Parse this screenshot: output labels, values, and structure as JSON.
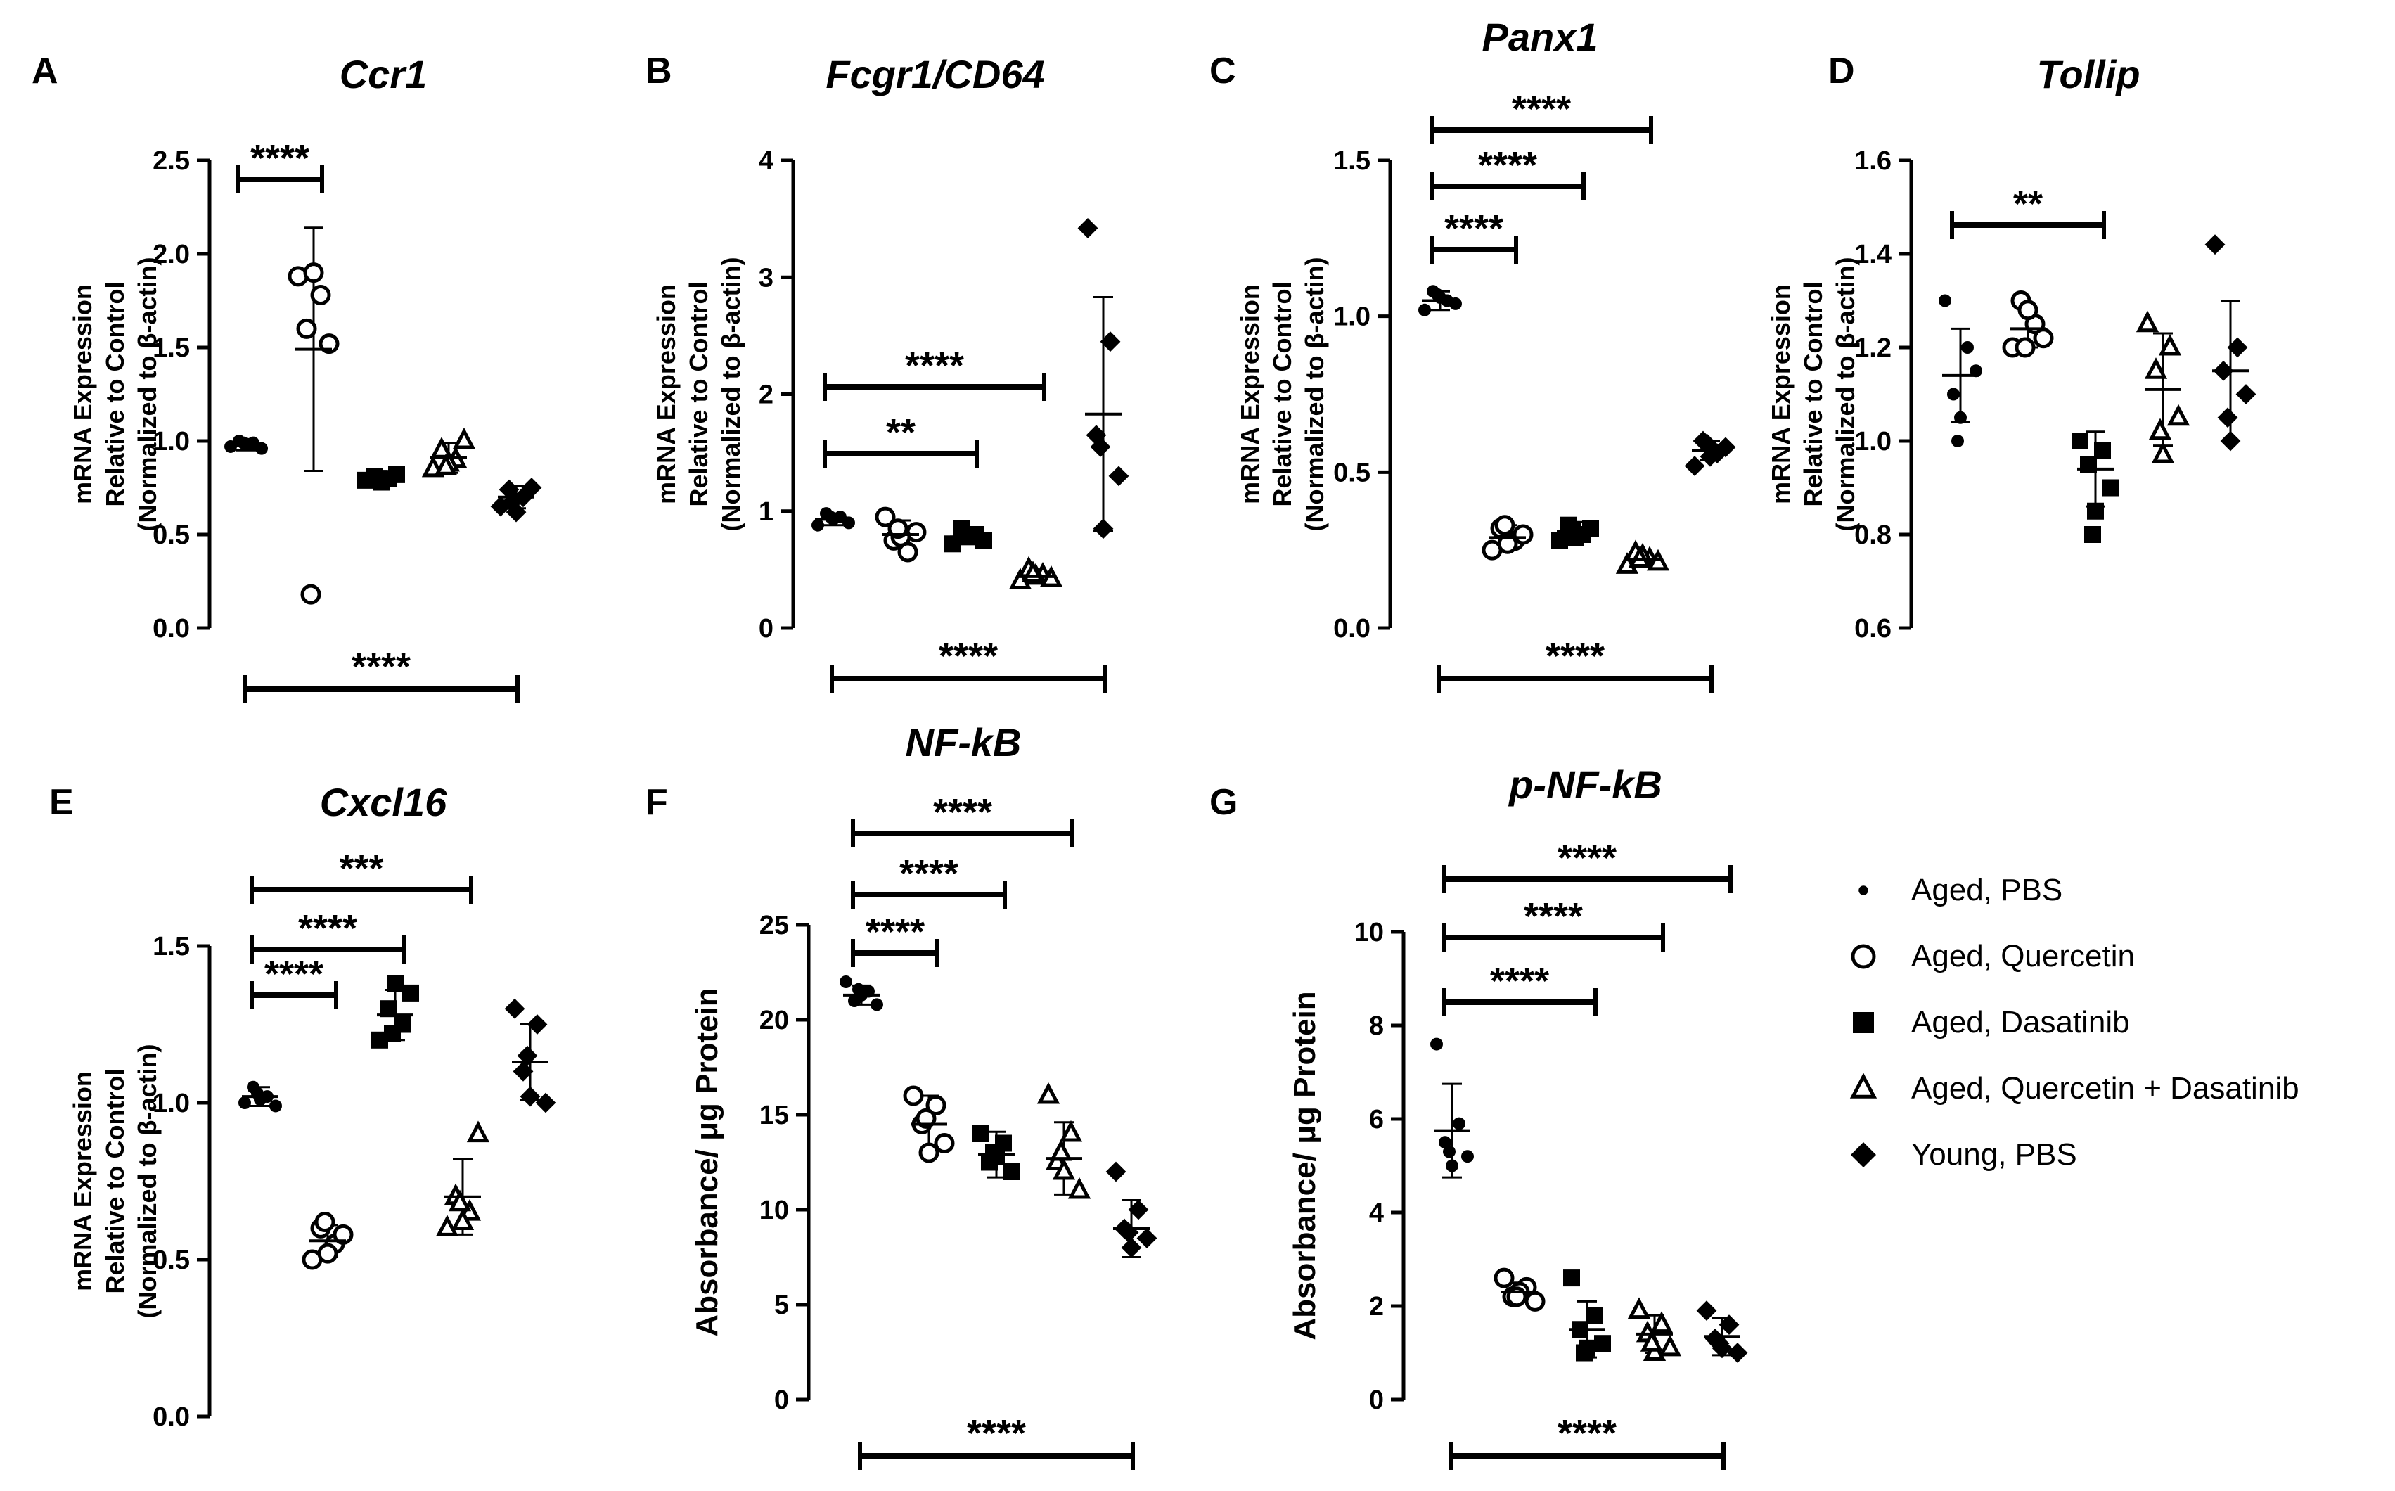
{
  "legend": [
    {
      "label": "Aged, PBS",
      "marker": "circle-filled"
    },
    {
      "label": "Aged, Quercetin",
      "marker": "circle-open"
    },
    {
      "label": "Aged, Dasatinib",
      "marker": "square-filled"
    },
    {
      "label": "Aged, Quercetin + Dasatinib",
      "marker": "triangle-open"
    },
    {
      "label": "Young, PBS",
      "marker": "diamond-filled"
    }
  ],
  "chart_data": [
    {
      "panel": "A",
      "title": "Ccr1",
      "type": "scatter",
      "ylabel": [
        "mRNA Expression",
        "Relative to Control",
        "(Normalized to β-actin)"
      ],
      "ylim": [
        0,
        2.5
      ],
      "yticks": [
        "0.0",
        "0.5",
        "1.0",
        "1.5",
        "2.0",
        "2.5"
      ],
      "ytick_values": [
        0,
        0.5,
        1.0,
        1.5,
        2.0,
        2.5
      ],
      "series": [
        {
          "name": "Aged, PBS",
          "marker": "circle-filled",
          "mean": 0.98,
          "sd": 0.03,
          "values": [
            0.97,
            0.99,
            1.0,
            0.96,
            0.98,
            0.99
          ]
        },
        {
          "name": "Aged, Quercetin",
          "marker": "circle-open",
          "mean": 1.49,
          "sd": 0.65,
          "values": [
            1.88,
            1.78,
            1.6,
            1.52,
            1.9,
            0.18
          ]
        },
        {
          "name": "Aged, Dasatinib",
          "marker": "square-filled",
          "mean": 0.8,
          "sd": 0.02,
          "values": [
            0.79,
            0.8,
            0.81,
            0.82,
            0.78,
            0.8
          ]
        },
        {
          "name": "Aged, Quercetin + Dasatinib",
          "marker": "triangle-open",
          "mean": 0.91,
          "sd": 0.08,
          "values": [
            0.85,
            0.9,
            0.95,
            1.0,
            0.88,
            0.86
          ]
        },
        {
          "name": "Young, PBS",
          "marker": "diamond-filled",
          "mean": 0.7,
          "sd": 0.06,
          "values": [
            0.65,
            0.7,
            0.74,
            0.75,
            0.62,
            0.68
          ]
        }
      ],
      "brackets_top": [
        {
          "from": 0,
          "to": 1,
          "label": "****"
        }
      ],
      "bracket_bottom": {
        "from": 0,
        "to": 4,
        "label": "****"
      }
    },
    {
      "panel": "B",
      "title": "Fcgr1/CD64",
      "type": "scatter",
      "ylabel": [
        "mRNA Expression",
        "Relative to Control",
        "(Normalized to β-actin)"
      ],
      "ylim": [
        0,
        4
      ],
      "yticks": [
        "0",
        "1",
        "2",
        "3",
        "4"
      ],
      "ytick_values": [
        0,
        1,
        2,
        3,
        4
      ],
      "series": [
        {
          "name": "Aged, PBS",
          "marker": "circle-filled",
          "mean": 0.93,
          "sd": 0.05,
          "values": [
            0.88,
            0.95,
            0.98,
            0.9,
            0.93,
            0.95
          ]
        },
        {
          "name": "Aged, Quercetin",
          "marker": "circle-open",
          "mean": 0.8,
          "sd": 0.12,
          "values": [
            0.95,
            0.65,
            0.75,
            0.82,
            0.78,
            0.85
          ]
        },
        {
          "name": "Aged, Dasatinib",
          "marker": "square-filled",
          "mean": 0.78,
          "sd": 0.05,
          "values": [
            0.72,
            0.8,
            0.85,
            0.75,
            0.78,
            0.8
          ]
        },
        {
          "name": "Aged, Quercetin + Dasatinib",
          "marker": "triangle-open",
          "mean": 0.44,
          "sd": 0.05,
          "values": [
            0.4,
            0.45,
            0.5,
            0.42,
            0.44,
            0.46
          ]
        },
        {
          "name": "Young, PBS",
          "marker": "diamond-filled",
          "mean": 1.83,
          "sd": 1.0,
          "values": [
            3.42,
            2.45,
            1.65,
            1.3,
            0.85,
            1.55
          ]
        }
      ],
      "brackets_top": [
        {
          "from": 0,
          "to": 3,
          "label": "****"
        },
        {
          "from": 0,
          "to": 2,
          "label": "**"
        }
      ],
      "bracket_bottom": {
        "from": 0,
        "to": 4,
        "label": "****"
      }
    },
    {
      "panel": "C",
      "title": "Panx1",
      "type": "scatter",
      "ylabel": [
        "mRNA Expression",
        "Relative to Control",
        "(Normalized to β-actin)"
      ],
      "ylim": [
        0,
        1.5
      ],
      "yticks": [
        "0.0",
        "0.5",
        "1.0",
        "1.5"
      ],
      "ytick_values": [
        0,
        0.5,
        1.0,
        1.5
      ],
      "series": [
        {
          "name": "Aged, PBS",
          "marker": "circle-filled",
          "mean": 1.05,
          "sd": 0.03,
          "values": [
            1.02,
            1.05,
            1.08,
            1.04,
            1.06,
            1.07
          ]
        },
        {
          "name": "Aged, Quercetin",
          "marker": "circle-open",
          "mean": 0.29,
          "sd": 0.04,
          "values": [
            0.25,
            0.28,
            0.32,
            0.3,
            0.27,
            0.33
          ]
        },
        {
          "name": "Aged, Dasatinib",
          "marker": "square-filled",
          "mean": 0.31,
          "sd": 0.03,
          "values": [
            0.28,
            0.3,
            0.33,
            0.32,
            0.29,
            0.31
          ]
        },
        {
          "name": "Aged, Quercetin + Dasatinib",
          "marker": "triangle-open",
          "mean": 0.22,
          "sd": 0.02,
          "values": [
            0.2,
            0.22,
            0.24,
            0.21,
            0.23,
            0.22
          ]
        },
        {
          "name": "Young, PBS",
          "marker": "diamond-filled",
          "mean": 0.57,
          "sd": 0.03,
          "values": [
            0.52,
            0.56,
            0.6,
            0.58,
            0.55,
            0.59
          ]
        }
      ],
      "brackets_top": [
        {
          "from": 0,
          "to": 3,
          "label": "****"
        },
        {
          "from": 0,
          "to": 2,
          "label": "****"
        },
        {
          "from": 0,
          "to": 1,
          "label": "****"
        }
      ],
      "bracket_bottom": {
        "from": 0,
        "to": 4,
        "label": "****"
      }
    },
    {
      "panel": "D",
      "title": "Tollip",
      "type": "scatter",
      "ylabel": [
        "mRNA Expression",
        "Relative to Control",
        "(Normalized to β-actin)"
      ],
      "ylim": [
        0.6,
        1.6
      ],
      "yticks": [
        "0.6",
        "0.8",
        "1.0",
        "1.2",
        "1.4",
        "1.6"
      ],
      "ytick_values": [
        0.6,
        0.8,
        1.0,
        1.2,
        1.4,
        1.6
      ],
      "series": [
        {
          "name": "Aged, PBS",
          "marker": "circle-filled",
          "mean": 1.14,
          "sd": 0.1,
          "values": [
            1.3,
            1.2,
            1.1,
            1.15,
            1.05,
            1.0
          ]
        },
        {
          "name": "Aged, Quercetin",
          "marker": "circle-open",
          "mean": 1.24,
          "sd": 0.04,
          "values": [
            1.2,
            1.25,
            1.3,
            1.22,
            1.28,
            1.2
          ]
        },
        {
          "name": "Aged, Dasatinib",
          "marker": "square-filled",
          "mean": 0.94,
          "sd": 0.08,
          "values": [
            1.0,
            0.98,
            0.95,
            0.9,
            0.85,
            0.8
          ]
        },
        {
          "name": "Aged, Quercetin + Dasatinib",
          "marker": "triangle-open",
          "mean": 1.11,
          "sd": 0.12,
          "values": [
            1.25,
            1.2,
            1.15,
            1.05,
            0.97,
            1.02
          ]
        },
        {
          "name": "Young, PBS",
          "marker": "diamond-filled",
          "mean": 1.15,
          "sd": 0.15,
          "values": [
            1.42,
            1.2,
            1.15,
            1.1,
            1.0,
            1.05
          ]
        }
      ],
      "brackets_top": [
        {
          "from": 0,
          "to": 2,
          "label": "**"
        }
      ],
      "bracket_bottom": null
    },
    {
      "panel": "E",
      "title": "Cxcl16",
      "type": "scatter",
      "ylabel": [
        "mRNA Expression",
        "Relative to Control",
        "(Normalized to β-actin)"
      ],
      "ylim": [
        0,
        1.5
      ],
      "yticks": [
        "0.0",
        "0.5",
        "1.0",
        "1.5"
      ],
      "ytick_values": [
        0,
        0.5,
        1.0,
        1.5
      ],
      "series": [
        {
          "name": "Aged, PBS",
          "marker": "circle-filled",
          "mean": 1.02,
          "sd": 0.03,
          "values": [
            1.0,
            1.02,
            1.05,
            0.99,
            1.01,
            1.03
          ]
        },
        {
          "name": "Aged, Quercetin",
          "marker": "circle-open",
          "mean": 0.56,
          "sd": 0.05,
          "values": [
            0.5,
            0.55,
            0.6,
            0.58,
            0.52,
            0.62
          ]
        },
        {
          "name": "Aged, Dasatinib",
          "marker": "square-filled",
          "mean": 1.28,
          "sd": 0.08,
          "values": [
            1.2,
            1.25,
            1.3,
            1.35,
            1.38,
            1.22
          ]
        },
        {
          "name": "Aged, Quercetin + Dasatinib",
          "marker": "triangle-open",
          "mean": 0.7,
          "sd": 0.12,
          "values": [
            0.6,
            0.65,
            0.7,
            0.9,
            0.62,
            0.68
          ]
        },
        {
          "name": "Young, PBS",
          "marker": "diamond-filled",
          "mean": 1.13,
          "sd": 0.12,
          "values": [
            1.3,
            1.25,
            1.1,
            1.0,
            1.02,
            1.15
          ]
        }
      ],
      "brackets_top": [
        {
          "from": 0,
          "to": 3,
          "label": "***"
        },
        {
          "from": 0,
          "to": 2,
          "label": "****"
        },
        {
          "from": 0,
          "to": 1,
          "label": "****"
        }
      ],
      "bracket_bottom": null
    },
    {
      "panel": "F",
      "title": "NF-kB",
      "type": "scatter",
      "ylabel": [
        "Absorbance/ μg Protein"
      ],
      "ylim": [
        0,
        25
      ],
      "yticks": [
        "0",
        "5",
        "10",
        "15",
        "20",
        "25"
      ],
      "ytick_values": [
        0,
        5,
        10,
        15,
        20,
        25
      ],
      "series": [
        {
          "name": "Aged, PBS",
          "marker": "circle-filled",
          "mean": 21.3,
          "sd": 0.5,
          "values": [
            22.0,
            21.5,
            21.0,
            20.8,
            21.3,
            21.6
          ]
        },
        {
          "name": "Aged, Quercetin",
          "marker": "circle-open",
          "mean": 14.5,
          "sd": 1.5,
          "values": [
            16.0,
            15.5,
            14.5,
            13.5,
            13.0,
            14.8
          ]
        },
        {
          "name": "Aged, Dasatinib",
          "marker": "square-filled",
          "mean": 12.9,
          "sd": 1.2,
          "values": [
            14.0,
            13.5,
            12.5,
            12.0,
            12.8,
            13.0
          ]
        },
        {
          "name": "Aged, Quercetin + Dasatinib",
          "marker": "triangle-open",
          "mean": 12.7,
          "sd": 1.9,
          "values": [
            16.0,
            14.0,
            12.5,
            11.0,
            12.0,
            13.0
          ]
        },
        {
          "name": "Young, PBS",
          "marker": "diamond-filled",
          "mean": 9.0,
          "sd": 1.5,
          "values": [
            12.0,
            10.0,
            9.0,
            8.5,
            8.0,
            8.8
          ]
        }
      ],
      "brackets_top": [
        {
          "from": 0,
          "to": 3,
          "label": "****"
        },
        {
          "from": 0,
          "to": 2,
          "label": "****"
        },
        {
          "from": 0,
          "to": 1,
          "label": "****"
        }
      ],
      "bracket_bottom": {
        "from": 0,
        "to": 4,
        "label": "****"
      }
    },
    {
      "panel": "G",
      "title": "p-NF-kB",
      "type": "scatter",
      "ylabel": [
        "Absorbance/ μg Protein"
      ],
      "ylim": [
        0,
        10
      ],
      "yticks": [
        "0",
        "2",
        "4",
        "6",
        "8",
        "10"
      ],
      "ytick_values": [
        0,
        2,
        4,
        6,
        8,
        10
      ],
      "series": [
        {
          "name": "Aged, PBS",
          "marker": "circle-filled",
          "mean": 5.75,
          "sd": 1.0,
          "values": [
            7.6,
            5.9,
            5.5,
            5.2,
            5.0,
            5.3
          ]
        },
        {
          "name": "Aged, Quercetin",
          "marker": "circle-open",
          "mean": 2.3,
          "sd": 0.2,
          "values": [
            2.6,
            2.4,
            2.2,
            2.1,
            2.3,
            2.2
          ]
        },
        {
          "name": "Aged, Dasatinib",
          "marker": "square-filled",
          "mean": 1.5,
          "sd": 0.6,
          "values": [
            2.6,
            1.8,
            1.5,
            1.2,
            1.1,
            1.0
          ]
        },
        {
          "name": "Aged, Quercetin + Dasatinib",
          "marker": "triangle-open",
          "mean": 1.4,
          "sd": 0.4,
          "values": [
            1.9,
            1.6,
            1.4,
            1.1,
            1.0,
            1.2
          ]
        },
        {
          "name": "Young, PBS",
          "marker": "diamond-filled",
          "mean": 1.35,
          "sd": 0.4,
          "values": [
            1.9,
            1.6,
            1.3,
            1.0,
            1.1,
            1.2
          ]
        }
      ],
      "brackets_top": [
        {
          "from": 0,
          "to": 4,
          "label": "****"
        },
        {
          "from": 0,
          "to": 3,
          "label": "****"
        },
        {
          "from": 0,
          "to": 2,
          "label": "****"
        }
      ],
      "bracket_bottom": {
        "from": 0,
        "to": 4,
        "label": "****"
      }
    }
  ]
}
